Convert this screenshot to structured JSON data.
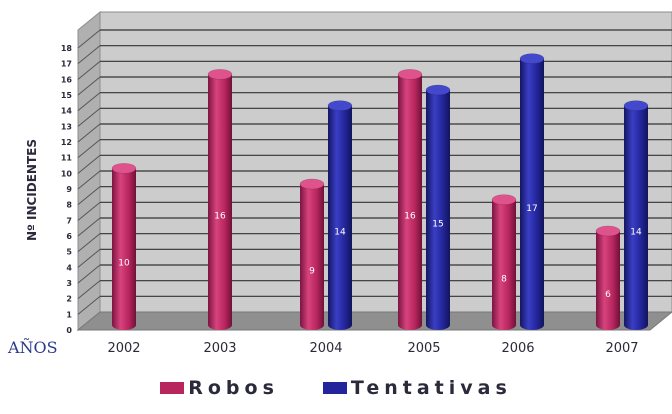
{
  "chart_data": {
    "type": "bar",
    "title": "",
    "xlabel": "AÑOS",
    "ylabel": "Nº INCIDENTES",
    "categories": [
      "2002",
      "2003",
      "2004",
      "2005",
      "2006",
      "2007"
    ],
    "series": [
      {
        "name": "Robos",
        "color": "#b8265e",
        "values": [
          10,
          16,
          9,
          16,
          8,
          6
        ],
        "labels": [
          "10",
          "16",
          "9",
          "16",
          "8",
          "6"
        ]
      },
      {
        "name": "Tentativas",
        "color": "#23269a",
        "values": [
          null,
          null,
          14,
          15,
          17,
          14
        ],
        "labels": [
          "",
          "",
          "14",
          "15",
          "17",
          "14"
        ]
      }
    ],
    "yticks": [
      "0",
      "1",
      "2",
      "3",
      "4",
      "5",
      "6",
      "7",
      "8",
      "9",
      "10",
      "11",
      "12",
      "13",
      "14",
      "15",
      "16",
      "17",
      "18"
    ],
    "ylim": [
      0,
      18
    ],
    "grid": true,
    "legend_position": "bottom-center"
  }
}
